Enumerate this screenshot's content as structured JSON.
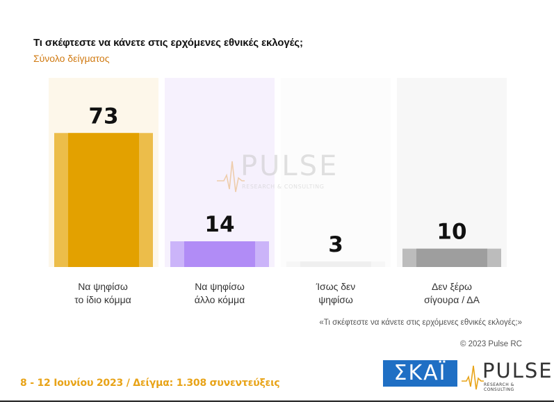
{
  "chart_data": {
    "type": "bar",
    "title": "Τι σκέφτεστε να κάνετε στις ερχόμενες εθνικές εκλογές;",
    "subtitle": "Σύνολο δείγματος",
    "categories": [
      "Να ψηφίσω\nτο ίδιο κόμμα",
      "Να ψηφίσω\nάλλο κόμμα",
      "Ίσως δεν\nψηφίσω",
      "Δεν ξέρω\nσίγουρα / ΔΑ"
    ],
    "values": [
      73,
      14,
      3,
      10
    ],
    "colors": [
      "#e3a100",
      "#b18cf6",
      "#efefef",
      "#9e9e9e"
    ],
    "lightColors": [
      "#ecbd4a",
      "#cbb4f9",
      "#f6f6f6",
      "#bcbcbc"
    ],
    "panelColors": [
      "#fdf7ea",
      "#f6f1fd",
      "#fcfcfc",
      "#f7f7f7"
    ],
    "ylim": [
      0,
      100
    ],
    "grid": false,
    "legend": "none"
  },
  "header": {
    "title": "Τι σκέφτεστε να κάνετε στις ερχόμενες εθνικές εκλογές;",
    "subtitle": "Σύνολο δείγματος"
  },
  "watermark": {
    "brand": "PULSE",
    "tagline": "RESEARCH & CONSULTING"
  },
  "notes": {
    "question_quote": "«Τι σκέφτεστε να κάνετε στις ερχόμενες εθνικές εκλογές;»",
    "copyright": "© 2023 Pulse RC"
  },
  "footer": {
    "date_sample": "8 - 12 Ιουνίου 2023 / Δείγμα: 1.308 συνεντεύξεις",
    "skai_logo": "ΣΚΑΪ",
    "pulse_logo": "PULSE",
    "pulse_tagline": "RESEARCH & CONSULTING"
  },
  "accent": "#e8a317"
}
